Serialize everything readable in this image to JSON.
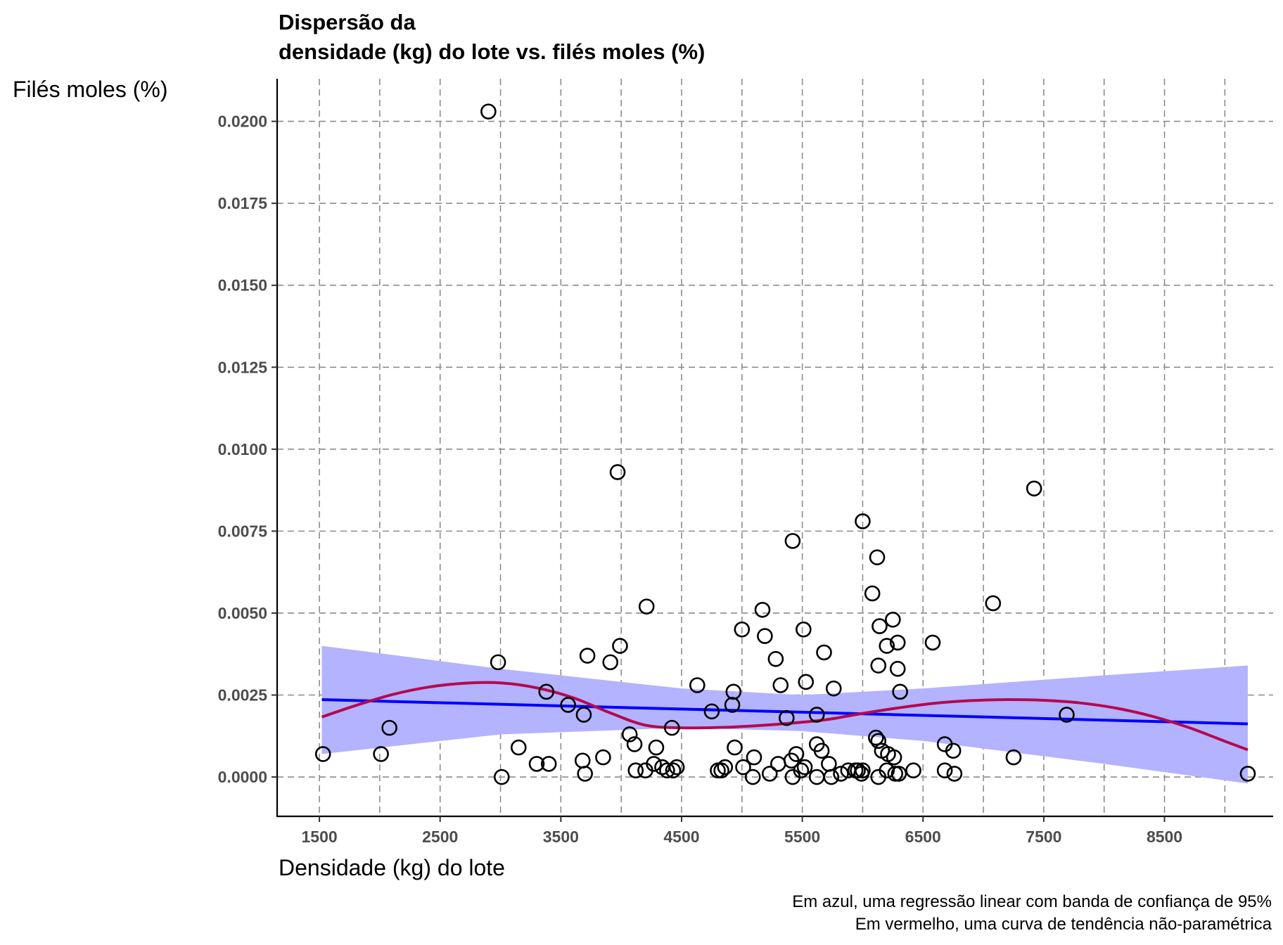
{
  "chart_data": {
    "type": "scatter",
    "title": [
      "Dispersão da",
      "densidade (kg) do lote vs. filés moles (%)"
    ],
    "xlabel": "Densidade (kg) do lote",
    "ylabel": "Filés moles (%)",
    "caption": [
      "Em azul, uma regressão linear com banda de confiança de 95%",
      "Em vermelho, uma curva de tendência não-paramétrica"
    ],
    "xlim": [
      1150,
      9400
    ],
    "ylim": [
      -0.0012,
      0.0213
    ],
    "x_ticks": [
      1500,
      2500,
      3500,
      4500,
      5500,
      6500,
      7500,
      8500
    ],
    "x_tick_labels": [
      "1500",
      "2500",
      "3500",
      "4500",
      "5500",
      "6500",
      "7500",
      "8500"
    ],
    "x_grid": [
      1500,
      2000,
      2500,
      3000,
      3500,
      4000,
      4500,
      5000,
      5500,
      6000,
      6500,
      7000,
      7500,
      8000,
      8500,
      9000
    ],
    "y_ticks": [
      0,
      0.0025,
      0.005,
      0.0075,
      0.01,
      0.0125,
      0.015,
      0.0175,
      0.02
    ],
    "y_tick_labels": [
      "0.0000",
      "0.0025",
      "0.0050",
      "0.0075",
      "0.0100",
      "0.0125",
      "0.0150",
      "0.0175",
      "0.0200"
    ],
    "grid": true,
    "colors": {
      "points": "#000000",
      "linear": "#0000ff",
      "band": "#b3b3ff",
      "loess": "#b5094f",
      "grid": "#8c8c8c"
    },
    "points": [
      [
        2900,
        0.0203
      ],
      [
        3970,
        0.0093
      ],
      [
        7420,
        0.0088
      ],
      [
        6000,
        0.0078
      ],
      [
        5420,
        0.0072
      ],
      [
        6120,
        0.0067
      ],
      [
        6080,
        0.0056
      ],
      [
        7080,
        0.0053
      ],
      [
        4210,
        0.0052
      ],
      [
        5170,
        0.0051
      ],
      [
        6250,
        0.0048
      ],
      [
        5000,
        0.0045
      ],
      [
        5510,
        0.0045
      ],
      [
        6140,
        0.0046
      ],
      [
        5190,
        0.0043
      ],
      [
        6580,
        0.0041
      ],
      [
        6290,
        0.0041
      ],
      [
        6200,
        0.004
      ],
      [
        3990,
        0.004
      ],
      [
        5680,
        0.0038
      ],
      [
        3720,
        0.0037
      ],
      [
        5280,
        0.0036
      ],
      [
        3910,
        0.0035
      ],
      [
        2980,
        0.0035
      ],
      [
        6130,
        0.0034
      ],
      [
        6290,
        0.0033
      ],
      [
        5530,
        0.0029
      ],
      [
        4630,
        0.0028
      ],
      [
        5320,
        0.0028
      ],
      [
        5760,
        0.0027
      ],
      [
        4930,
        0.0026
      ],
      [
        6310,
        0.0026
      ],
      [
        3380,
        0.0026
      ],
      [
        3560,
        0.0022
      ],
      [
        4920,
        0.0022
      ],
      [
        4750,
        0.002
      ],
      [
        3690,
        0.0019
      ],
      [
        5620,
        0.0019
      ],
      [
        7690,
        0.0019
      ],
      [
        5370,
        0.0018
      ],
      [
        2080,
        0.0015
      ],
      [
        4420,
        0.0015
      ],
      [
        4070,
        0.0013
      ],
      [
        6110,
        0.0012
      ],
      [
        6130,
        0.0011
      ],
      [
        4110,
        0.001
      ],
      [
        4940,
        0.0009
      ],
      [
        5620,
        0.001
      ],
      [
        6680,
        0.001
      ],
      [
        3150,
        0.0009
      ],
      [
        4290,
        0.0009
      ],
      [
        5660,
        0.0008
      ],
      [
        6160,
        0.0008
      ],
      [
        6750,
        0.0008
      ],
      [
        1530,
        0.0007
      ],
      [
        2010,
        0.0007
      ],
      [
        5450,
        0.0007
      ],
      [
        6210,
        0.0007
      ],
      [
        6260,
        0.0006
      ],
      [
        5100,
        0.0006
      ],
      [
        7250,
        0.0006
      ],
      [
        3850,
        0.0006
      ],
      [
        3680,
        0.0005
      ],
      [
        5410,
        0.0005
      ],
      [
        3300,
        0.0004
      ],
      [
        3400,
        0.0004
      ],
      [
        5300,
        0.0004
      ],
      [
        4270,
        0.0004
      ],
      [
        5720,
        0.0004
      ],
      [
        4340,
        0.0003
      ],
      [
        4860,
        0.0003
      ],
      [
        4460,
        0.0003
      ],
      [
        5520,
        0.0003
      ],
      [
        4800,
        0.0002
      ],
      [
        4380,
        0.0002
      ],
      [
        4120,
        0.0002
      ],
      [
        5490,
        0.0002
      ],
      [
        5960,
        0.0002
      ],
      [
        6200,
        0.0002
      ],
      [
        6420,
        0.0002
      ],
      [
        6680,
        0.0002
      ],
      [
        4830,
        0.0002
      ],
      [
        4200,
        0.0002
      ],
      [
        4430,
        0.0002
      ],
      [
        5010,
        0.0003
      ],
      [
        6000,
        0.0002
      ],
      [
        6760,
        0.0001
      ],
      [
        5880,
        0.0002
      ],
      [
        5940,
        0.0002
      ],
      [
        3700,
        0.0001
      ],
      [
        5820,
        0.0001
      ],
      [
        5990,
        0.0001
      ],
      [
        5230,
        0.0001
      ],
      [
        6300,
        0.0001
      ],
      [
        6270,
        0.0001
      ],
      [
        9190,
        0.0001
      ],
      [
        3010,
        0.0
      ],
      [
        5090,
        0.0
      ],
      [
        5420,
        0.0
      ],
      [
        5620,
        0.0
      ],
      [
        5740,
        0.0
      ],
      [
        6130,
        0.0
      ]
    ],
    "linear_fit": {
      "x": [
        1520,
        9190
      ],
      "y": [
        0.00236,
        0.00162
      ]
    },
    "confidence_band": {
      "x": [
        1520,
        3000,
        4500,
        5500,
        6500,
        8000,
        9190
      ],
      "upper": [
        0.004,
        0.0033,
        0.0027,
        0.0025,
        0.0027,
        0.0031,
        0.0034
      ],
      "lower": [
        0.0007,
        0.0013,
        0.0015,
        0.0014,
        0.0011,
        0.0004,
        -0.0002
      ]
    },
    "loess_curve": {
      "x": [
        1520,
        1800,
        2100,
        2400,
        2700,
        3000,
        3300,
        3600,
        3900,
        4200,
        4500,
        4800,
        5100,
        5400,
        5700,
        6000,
        6300,
        6600,
        6900,
        7200,
        7500,
        7800,
        8100,
        8400,
        8700,
        9000,
        9190
      ],
      "y": [
        0.00183,
        0.00218,
        0.00251,
        0.00274,
        0.00286,
        0.00287,
        0.00272,
        0.00242,
        0.00197,
        0.00158,
        0.0015,
        0.00151,
        0.00156,
        0.00164,
        0.00175,
        0.00194,
        0.00211,
        0.00225,
        0.00233,
        0.00236,
        0.00234,
        0.00226,
        0.0021,
        0.00185,
        0.00151,
        0.00109,
        0.00083
      ]
    }
  }
}
